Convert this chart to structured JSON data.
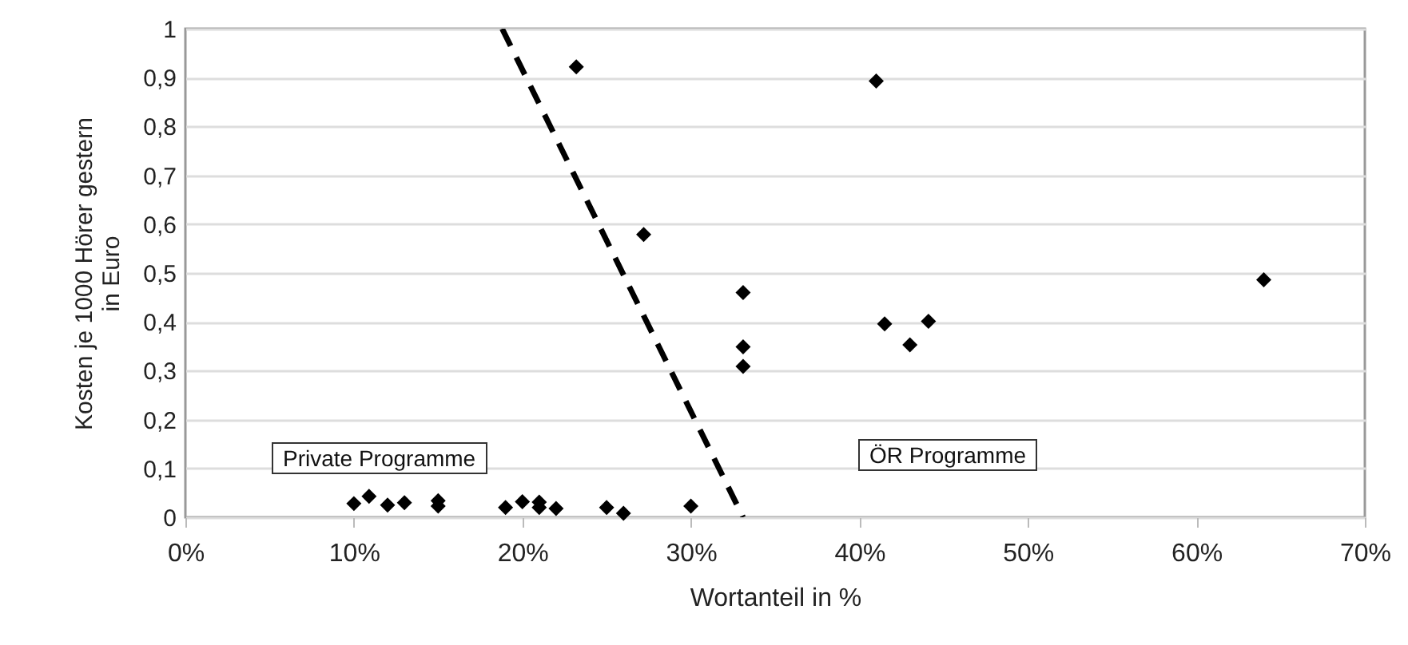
{
  "chart_data": {
    "type": "scatter",
    "xlabel": "Wortanteil in %",
    "ylabel": "Kosten je 1000 Hörer gestern in Euro",
    "annotations": [
      "Private Programme",
      "ÖR Programme"
    ],
    "series": [
      {
        "type": "scatter",
        "color": "#000000",
        "marker": "diamond",
        "x": [
          10.0,
          10.9,
          12.0,
          13.0,
          15.0,
          15.0,
          19.0,
          20.0,
          21.0,
          21.0,
          22.0,
          25.0,
          26.0,
          30.0,
          23.2,
          27.2,
          33.1,
          33.1,
          33.1,
          41.0,
          41.5,
          43.0,
          44.1,
          64.0
        ],
        "values": [
          0.028,
          0.043,
          0.025,
          0.03,
          0.034,
          0.023,
          0.02,
          0.032,
          0.031,
          0.02,
          0.018,
          0.02,
          0.008,
          0.023,
          0.922,
          0.579,
          0.46,
          0.349,
          0.309,
          0.893,
          0.396,
          0.353,
          0.401,
          0.486
        ]
      },
      {
        "type": "line",
        "color": "#000000",
        "line_style": "dashed",
        "x": [
          18.8,
          33.1
        ],
        "values": [
          1,
          0
        ]
      }
    ],
    "xlim": [
      0,
      70
    ],
    "ylim": [
      0,
      1
    ],
    "xticks": [
      {
        "value": 0,
        "label": "0%"
      },
      {
        "value": 10,
        "label": "10%"
      },
      {
        "value": 20,
        "label": "20%"
      },
      {
        "value": 30,
        "label": "30%"
      },
      {
        "value": 40,
        "label": "40%"
      },
      {
        "value": 50,
        "label": "50%"
      },
      {
        "value": 60,
        "label": "60%"
      },
      {
        "value": 70,
        "label": "70%"
      }
    ],
    "yticks": [
      0,
      {
        "value": 0.1,
        "label": "0,1"
      },
      {
        "value": 0.2,
        "label": "0,2"
      },
      {
        "value": 0.3,
        "label": "0,3"
      },
      {
        "value": 0.4,
        "label": "0,4"
      },
      {
        "value": 0.5,
        "label": "0,5"
      },
      {
        "value": 0.6,
        "label": "0,6"
      },
      {
        "value": 0.7,
        "label": "0,7"
      },
      {
        "value": 0.8,
        "label": "0,8"
      },
      {
        "value": 0.9,
        "label": "0,9"
      },
      1
    ],
    "grid": "y",
    "legend": false
  }
}
